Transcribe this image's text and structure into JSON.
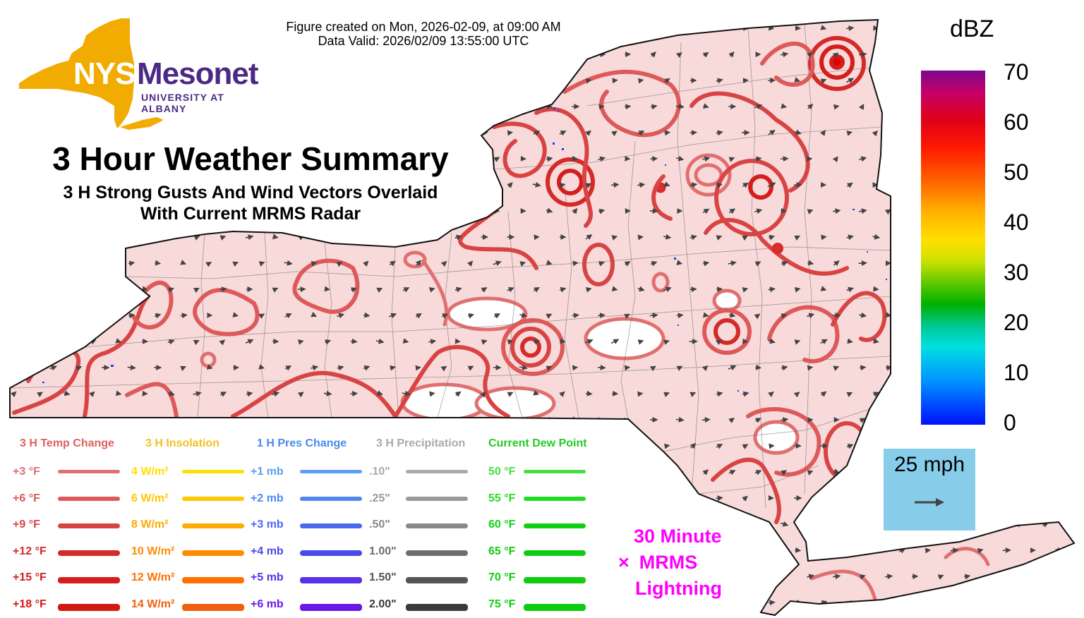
{
  "header": {
    "created": "Figure created on Mon, 2026-02-09, at 09:00 AM",
    "valid": "Data Valid: 2026/02/09 13:55:00 UTC"
  },
  "logo": {
    "name": "NYS Mesonet",
    "subtitle": "UNIVERSITY AT ALBANY",
    "colors": {
      "state": "#f2ab00",
      "text": "#4b2a85"
    }
  },
  "title": "3 Hour Weather Summary",
  "subtitle_line1": "3 H Strong Gusts And Wind Vectors Overlaid",
  "subtitle_line2": "With Current MRMS Radar",
  "colorbar": {
    "unit": "dBZ",
    "ticks": [
      "70",
      "60",
      "50",
      "40",
      "30",
      "20",
      "10",
      "0"
    ]
  },
  "wind_scale": {
    "label": "25 mph",
    "icon": "arrow-right-icon"
  },
  "lightning_note": [
    "30 Minute",
    "MRMS",
    "Lightning"
  ],
  "lightning_marker": "×",
  "legend": [
    {
      "header": "3 H Temp Change",
      "header_color": "#e06060",
      "items": [
        {
          "label": "+3 °F",
          "color": "#e07070"
        },
        {
          "label": "+6 °F",
          "color": "#de5a5a"
        },
        {
          "label": "+9 °F",
          "color": "#d84444"
        },
        {
          "label": "+12 °F",
          "color": "#d42a2a"
        },
        {
          "label": "+15 °F",
          "color": "#d41e1e"
        },
        {
          "label": "+18 °F",
          "color": "#d41a10"
        }
      ]
    },
    {
      "header": "3 H Insolation",
      "header_color": "#f5c020",
      "items": [
        {
          "label": "4 W/m²",
          "color": "#ffe000"
        },
        {
          "label": "6 W/m²",
          "color": "#ffc800"
        },
        {
          "label": "8 W/m²",
          "color": "#ffaa00"
        },
        {
          "label": "10 W/m²",
          "color": "#ff8c00"
        },
        {
          "label": "12 W/m²",
          "color": "#ff7000"
        },
        {
          "label": "14 W/m²",
          "color": "#f06010"
        }
      ]
    },
    {
      "header": "1 H Pres Change",
      "header_color": "#4a8af0",
      "items": [
        {
          "label": "+1 mb",
          "color": "#5aa0f0"
        },
        {
          "label": "+2 mb",
          "color": "#5088f0"
        },
        {
          "label": "+3 mb",
          "color": "#4a6af0"
        },
        {
          "label": "+4 mb",
          "color": "#4a4ae8"
        },
        {
          "label": "+5 mb",
          "color": "#5a30e8"
        },
        {
          "label": "+6 mb",
          "color": "#6a18e8"
        }
      ]
    },
    {
      "header": "3 H Precipitation",
      "header_color": "#aaaaaa",
      "items": [
        {
          "label": ".10\"",
          "color": "#aaaaaa"
        },
        {
          "label": ".25\"",
          "color": "#999999"
        },
        {
          "label": ".50\"",
          "color": "#888888"
        },
        {
          "label": "1.00\"",
          "color": "#6e6e6e"
        },
        {
          "label": "1.50\"",
          "color": "#555555"
        },
        {
          "label": "2.00\"",
          "color": "#3a3a3a"
        }
      ]
    },
    {
      "header": "Current Dew Point",
      "header_color": "#22cc22",
      "items": [
        {
          "label": "50 °F",
          "color": "#44e044"
        },
        {
          "label": "55 °F",
          "color": "#22dd22"
        },
        {
          "label": "60 °F",
          "color": "#10d010"
        },
        {
          "label": "65 °F",
          "color": "#10cc10"
        },
        {
          "label": "70 °F",
          "color": "#10cc10"
        },
        {
          "label": "75 °F",
          "color": "#10cc10"
        }
      ]
    }
  ],
  "map_colors": {
    "fill": "#f8dada",
    "border": "#111111",
    "county": "#555555",
    "arrow": "#444444",
    "temp_contour": "#d93c3c",
    "clear_patch": "#ffffff"
  }
}
